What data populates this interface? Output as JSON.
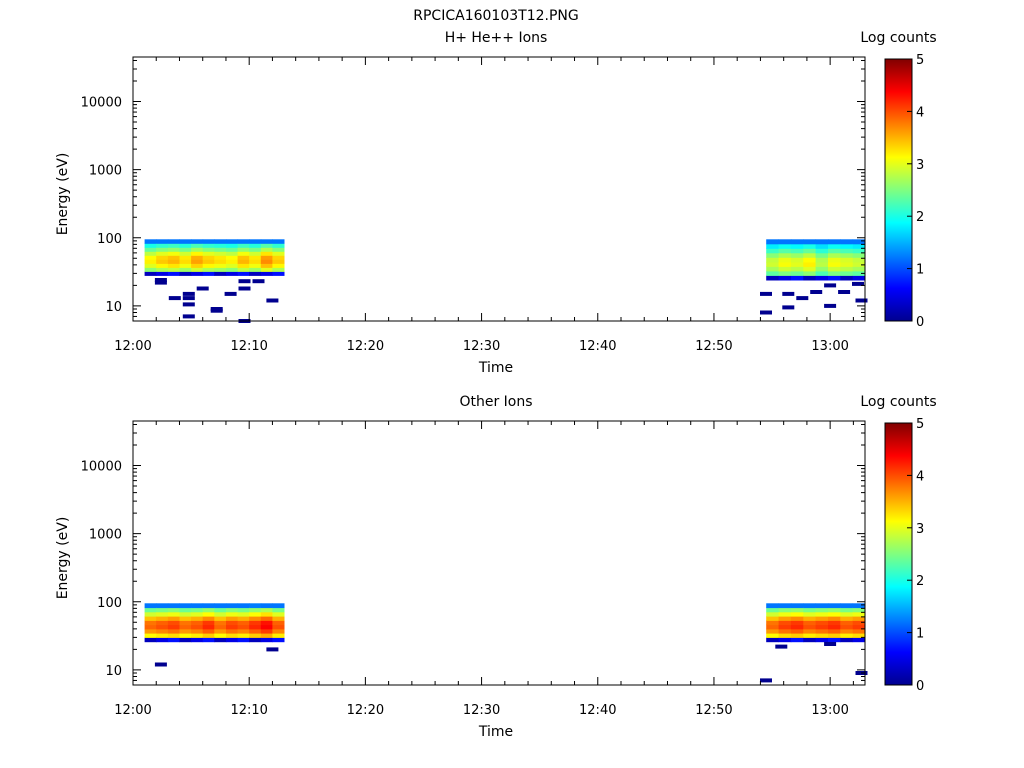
{
  "figure_title": "RPCICA160103T12.PNG",
  "chart_data": [
    {
      "type": "heatmap",
      "title": "H+ He++ Ions",
      "xlabel": "Time",
      "ylabel": "Energy (eV)",
      "x_ticks": [
        "12:00",
        "12:10",
        "12:20",
        "12:30",
        "12:40",
        "12:50",
        "13:00"
      ],
      "xlim": [
        "12:00",
        "13:03"
      ],
      "y_scale": "log",
      "y_ticks": [
        "10",
        "100",
        "1000",
        "10000"
      ],
      "ylim": [
        6,
        45000
      ],
      "colorbar": {
        "label": "Log counts",
        "range": [
          0,
          5
        ],
        "ticks": [
          "0",
          "1",
          "2",
          "3",
          "4",
          "5"
        ]
      },
      "blocks": [
        {
          "t_start": "12:01",
          "t_end": "12:13",
          "e_min": 28,
          "e_max": 95,
          "peak_level": [
            3.2,
            3.4,
            3.5,
            3.3,
            3.6,
            3.4,
            3.3,
            3.2,
            3.5,
            3.3,
            3.7,
            3.4
          ],
          "sparse_points": [
            {
              "t": 12.04,
              "e": 24
            },
            {
              "t": 12.04,
              "e": 22
            },
            {
              "t": 12.06,
              "e": 13
            },
            {
              "t": 12.08,
              "e": 15
            },
            {
              "t": 12.08,
              "e": 13
            },
            {
              "t": 12.08,
              "e": 10.5
            },
            {
              "t": 12.08,
              "e": 7
            },
            {
              "t": 12.1,
              "e": 18
            },
            {
              "t": 12.12,
              "e": 9
            },
            {
              "t": 12.12,
              "e": 8.5
            },
            {
              "t": 12.14,
              "e": 15
            },
            {
              "t": 12.16,
              "e": 23
            },
            {
              "t": 12.16,
              "e": 18
            },
            {
              "t": 12.16,
              "e": 6
            },
            {
              "t": 12.18,
              "e": 23
            },
            {
              "t": 12.2,
              "e": 12
            }
          ]
        },
        {
          "t_start": "12:54.5",
          "t_end": "13:03",
          "e_min": 24,
          "e_max": 95,
          "peak_level": [
            2.9,
            3.1,
            3.0,
            3.2,
            2.8,
            3.1,
            3.0,
            2.9
          ],
          "sparse_points": [
            {
              "t": 12.908,
              "e": 15
            },
            {
              "t": 12.908,
              "e": 8
            },
            {
              "t": 12.94,
              "e": 15
            },
            {
              "t": 12.94,
              "e": 9.5
            },
            {
              "t": 12.96,
              "e": 13
            },
            {
              "t": 12.98,
              "e": 16
            },
            {
              "t": 13.0,
              "e": 20
            },
            {
              "t": 13.0,
              "e": 10
            },
            {
              "t": 13.02,
              "e": 16
            },
            {
              "t": 13.04,
              "e": 21
            },
            {
              "t": 13.045,
              "e": 12
            }
          ]
        }
      ]
    },
    {
      "type": "heatmap",
      "title": "Other Ions",
      "xlabel": "Time",
      "ylabel": "Energy (eV)",
      "x_ticks": [
        "12:00",
        "12:10",
        "12:20",
        "12:30",
        "12:40",
        "12:50",
        "13:00"
      ],
      "xlim": [
        "12:00",
        "13:03"
      ],
      "y_scale": "log",
      "y_ticks": [
        "10",
        "100",
        "1000",
        "10000"
      ],
      "ylim": [
        6,
        45000
      ],
      "colorbar": {
        "label": "Log counts",
        "range": [
          0,
          5
        ],
        "ticks": [
          "0",
          "1",
          "2",
          "3",
          "4",
          "5"
        ]
      },
      "blocks": [
        {
          "t_start": "12:01",
          "t_end": "12:13",
          "e_min": 26,
          "e_max": 95,
          "peak_level": [
            3.9,
            4.0,
            4.1,
            3.9,
            4.0,
            4.2,
            3.9,
            4.1,
            4.0,
            4.2,
            4.4,
            4.0
          ],
          "sparse_points": [
            {
              "t": 12.04,
              "e": 12
            },
            {
              "t": 12.2,
              "e": 20
            }
          ]
        },
        {
          "t_start": "12:54.5",
          "t_end": "13:03",
          "e_min": 26,
          "e_max": 95,
          "peak_level": [
            3.9,
            4.1,
            4.2,
            4.0,
            4.1,
            4.2,
            4.0,
            4.1
          ],
          "sparse_points": [
            {
              "t": 12.908,
              "e": 7
            },
            {
              "t": 12.93,
              "e": 22
            },
            {
              "t": 13.0,
              "e": 24
            },
            {
              "t": 13.045,
              "e": 9
            }
          ]
        }
      ]
    }
  ]
}
